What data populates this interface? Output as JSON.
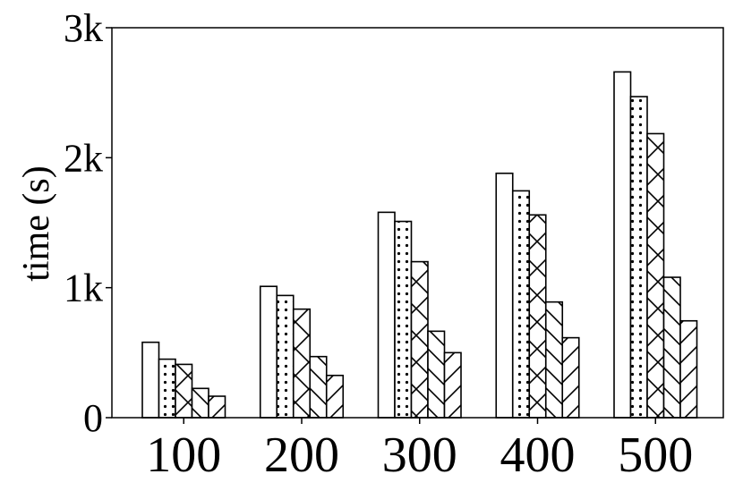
{
  "chart_data": {
    "type": "bar",
    "categories": [
      "100",
      "200",
      "300",
      "400",
      "500"
    ],
    "series": [
      {
        "pattern": "none",
        "values": [
          580,
          1010,
          1580,
          1880,
          2660
        ]
      },
      {
        "pattern": "dots",
        "values": [
          450,
          940,
          1510,
          1745,
          2470
        ]
      },
      {
        "pattern": "crosshatch",
        "values": [
          410,
          835,
          1200,
          1560,
          2185
        ]
      },
      {
        "pattern": "backslash",
        "values": [
          225,
          470,
          665,
          890,
          1080
        ]
      },
      {
        "pattern": "slash",
        "values": [
          165,
          325,
          500,
          615,
          745
        ]
      }
    ],
    "title": "",
    "xlabel": "",
    "ylabel": "time (s)",
    "ylim": [
      0,
      3000
    ],
    "yticks": [
      0,
      1000,
      2000,
      3000
    ],
    "ytick_labels": [
      "0",
      "1k",
      "2k",
      "3k"
    ],
    "grid": false,
    "colors": {
      "bar_fill": "#ffffff",
      "bar_edge": "#000000",
      "pattern": "#000000"
    }
  }
}
